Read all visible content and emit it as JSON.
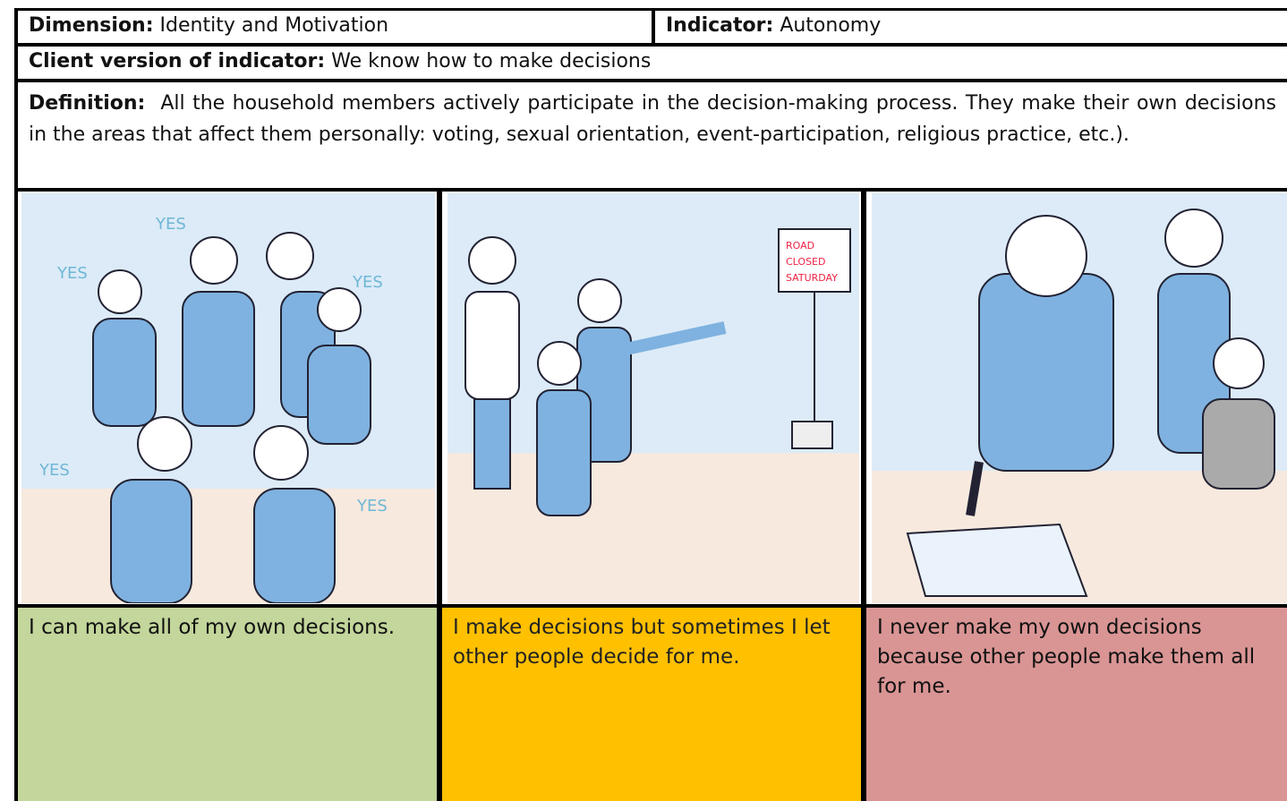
{
  "header": {
    "dimension": {
      "label": "Dimension:",
      "value": "Identity and Motivation"
    },
    "indicator": {
      "label": "Indicator:",
      "value": "Autonomy"
    }
  },
  "client_version": {
    "label": "Client version of indicator:",
    "value": "We know how to make decisions"
  },
  "definition": {
    "label": "Definition:",
    "value": "All the household members actively participate in the decision-making process. They make their own decisions in the areas that affect them personally: voting, sexual orientation, event-participation, religious practice, etc.)."
  },
  "levels": [
    {
      "text": "I can make all of my own decisions."
    },
    {
      "text": "I make decisions but sometimes I let other people decide for me."
    },
    {
      "text": "I never make my own decisions because other people make them all for me."
    }
  ]
}
